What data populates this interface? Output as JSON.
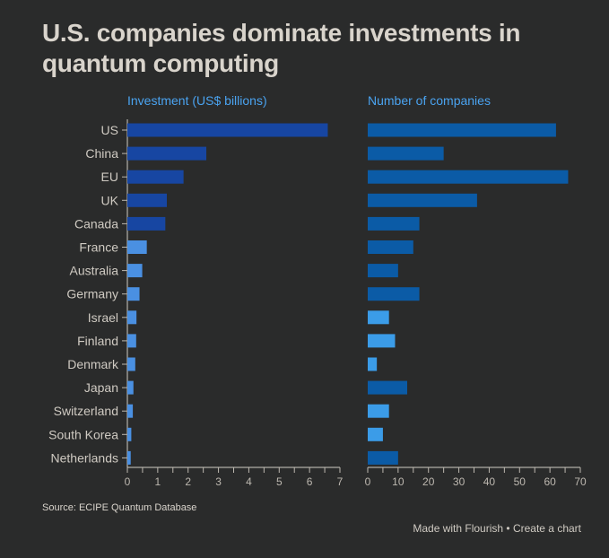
{
  "title": "U.S. companies dominate investments in quantum computing",
  "source": "Source: ECIPE Quantum Database",
  "footer": {
    "made_with": "Made with Flourish",
    "separator": "•",
    "create": "Create a chart"
  },
  "chart_data": [
    {
      "type": "bar",
      "orientation": "horizontal",
      "title": "Investment (US$ billions)",
      "xlabel": "",
      "ylabel": "",
      "categories": [
        "US",
        "China",
        "EU",
        "UK",
        "Canada",
        "France",
        "Australia",
        "Germany",
        "Israel",
        "Finland",
        "Denmark",
        "Japan",
        "Switzerland",
        "South Korea",
        "Netherlands"
      ],
      "values": [
        6.6,
        2.6,
        1.85,
        1.3,
        1.25,
        0.64,
        0.49,
        0.4,
        0.3,
        0.29,
        0.26,
        0.2,
        0.18,
        0.13,
        0.11
      ],
      "colors": [
        "#1746a2",
        "#1746a2",
        "#1746a2",
        "#1746a2",
        "#1746a2",
        "#4a90e2",
        "#4a90e2",
        "#4a90e2",
        "#4a90e2",
        "#4a90e2",
        "#4a90e2",
        "#4a90e2",
        "#4a90e2",
        "#4a90e2",
        "#4a90e2"
      ],
      "xlim": [
        0,
        7
      ],
      "ticks": [
        0,
        1,
        2,
        3,
        4,
        5,
        6,
        7
      ],
      "grid": false
    },
    {
      "type": "bar",
      "orientation": "horizontal",
      "title": "Number of companies",
      "xlabel": "",
      "ylabel": "",
      "categories": [
        "US",
        "China",
        "EU",
        "UK",
        "Canada",
        "France",
        "Australia",
        "Germany",
        "Israel",
        "Finland",
        "Denmark",
        "Japan",
        "Switzerland",
        "South Korea",
        "Netherlands"
      ],
      "values": [
        62,
        25,
        66,
        36,
        17,
        15,
        10,
        17,
        7,
        9,
        3,
        13,
        7,
        5,
        10
      ],
      "colors": [
        "#0b5ba6",
        "#0b5ba6",
        "#0b5ba6",
        "#0b5ba6",
        "#0b5ba6",
        "#0b5ba6",
        "#0b5ba6",
        "#0b5ba6",
        "#3b9ce8",
        "#3b9ce8",
        "#3b9ce8",
        "#0b5ba6",
        "#3b9ce8",
        "#3b9ce8",
        "#0b5ba6"
      ],
      "xlim": [
        0,
        70
      ],
      "ticks": [
        0,
        10,
        20,
        30,
        40,
        50,
        60,
        70
      ],
      "grid": false
    }
  ]
}
